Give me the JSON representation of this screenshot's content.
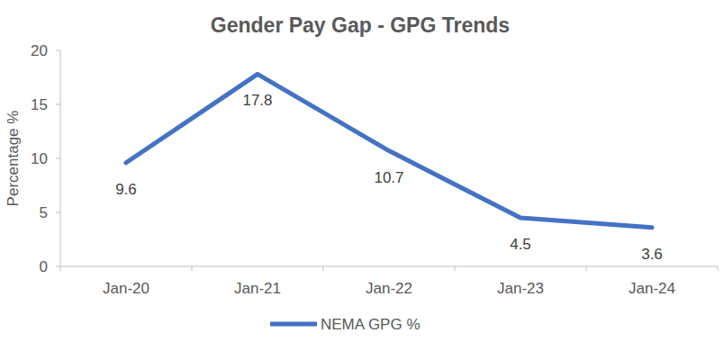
{
  "chart_data": {
    "type": "line",
    "title": "Gender Pay Gap - GPG Trends",
    "y_label": "Percentage %",
    "categories": [
      "Jan-20",
      "Jan-21",
      "Jan-22",
      "Jan-23",
      "Jan-24"
    ],
    "series": [
      {
        "name": "NEMA GPG %",
        "color": "#4472c4",
        "values": [
          9.6,
          17.8,
          10.7,
          4.5,
          3.6
        ]
      }
    ],
    "ylim": [
      0,
      20
    ],
    "yticks": [
      0,
      5,
      10,
      15,
      20
    ],
    "grid": false,
    "data_labels": true,
    "legend": "bottom"
  }
}
